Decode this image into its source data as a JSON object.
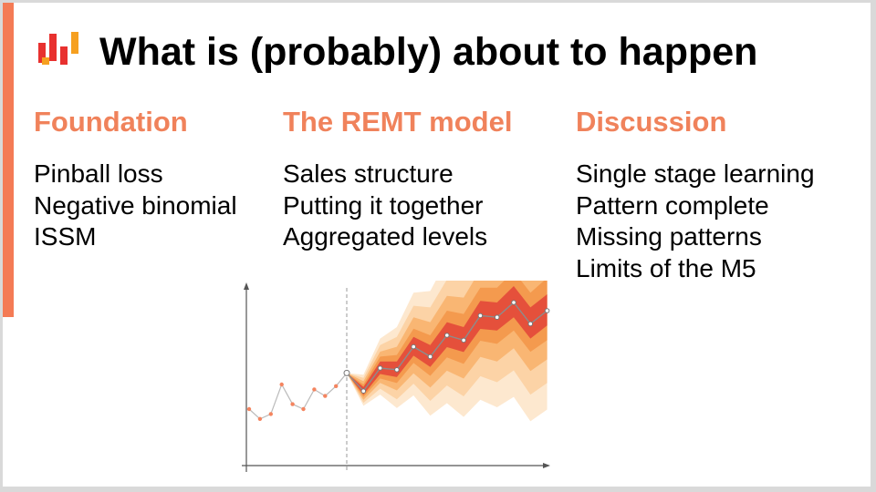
{
  "title": "What is (probably) about to happen",
  "columns": [
    {
      "heading": "Foundation",
      "items": [
        "Pinball loss",
        "Negative binomial",
        "ISSM"
      ]
    },
    {
      "heading": "The REMT model",
      "items": [
        "Sales structure",
        "Putting it together",
        "Aggregated levels"
      ]
    },
    {
      "heading": "Discussion",
      "items": [
        "Single stage learning",
        "Pattern complete",
        "Missing patterns",
        "Limits of the M5"
      ]
    }
  ],
  "colors": {
    "accent": "#f47b55",
    "heading": "#f0825b",
    "history": "#f4845f",
    "forecast_line": "#8c8c8c",
    "logo_red": "#e8312f",
    "logo_orange": "#f6a020"
  },
  "logo": {
    "icon": "bar-chart-logo-icon"
  },
  "chart_data": {
    "type": "line",
    "history": [
      0.3,
      0.24,
      0.27,
      0.45,
      0.33,
      0.3,
      0.42,
      0.38,
      0.44,
      0.52
    ],
    "forecast": [
      0.52,
      0.41,
      0.55,
      0.54,
      0.68,
      0.62,
      0.75,
      0.72,
      0.87,
      0.86,
      0.95,
      0.82,
      0.9
    ],
    "fan_bands": [
      {
        "color": "#fde8cf",
        "spread": [
          0.0,
          0.1,
          0.18,
          0.26,
          0.33,
          0.4,
          0.46,
          0.52,
          0.57,
          0.61,
          0.64,
          0.66,
          0.67
        ]
      },
      {
        "color": "#fcd3a6",
        "spread": [
          0.0,
          0.08,
          0.14,
          0.2,
          0.25,
          0.3,
          0.34,
          0.38,
          0.41,
          0.44,
          0.46,
          0.48,
          0.49
        ]
      },
      {
        "color": "#f9b673",
        "spread": [
          0.0,
          0.06,
          0.1,
          0.14,
          0.18,
          0.21,
          0.24,
          0.26,
          0.28,
          0.3,
          0.31,
          0.32,
          0.33
        ]
      },
      {
        "color": "#f49a4e",
        "spread": [
          0.0,
          0.04,
          0.07,
          0.09,
          0.11,
          0.13,
          0.15,
          0.16,
          0.17,
          0.18,
          0.19,
          0.19,
          0.2
        ]
      },
      {
        "color": "#e5503b",
        "spread": [
          0.0,
          0.025,
          0.04,
          0.05,
          0.06,
          0.07,
          0.08,
          0.08,
          0.09,
          0.09,
          0.1,
          0.1,
          0.1
        ]
      }
    ],
    "forecast_start_marker": true
  }
}
